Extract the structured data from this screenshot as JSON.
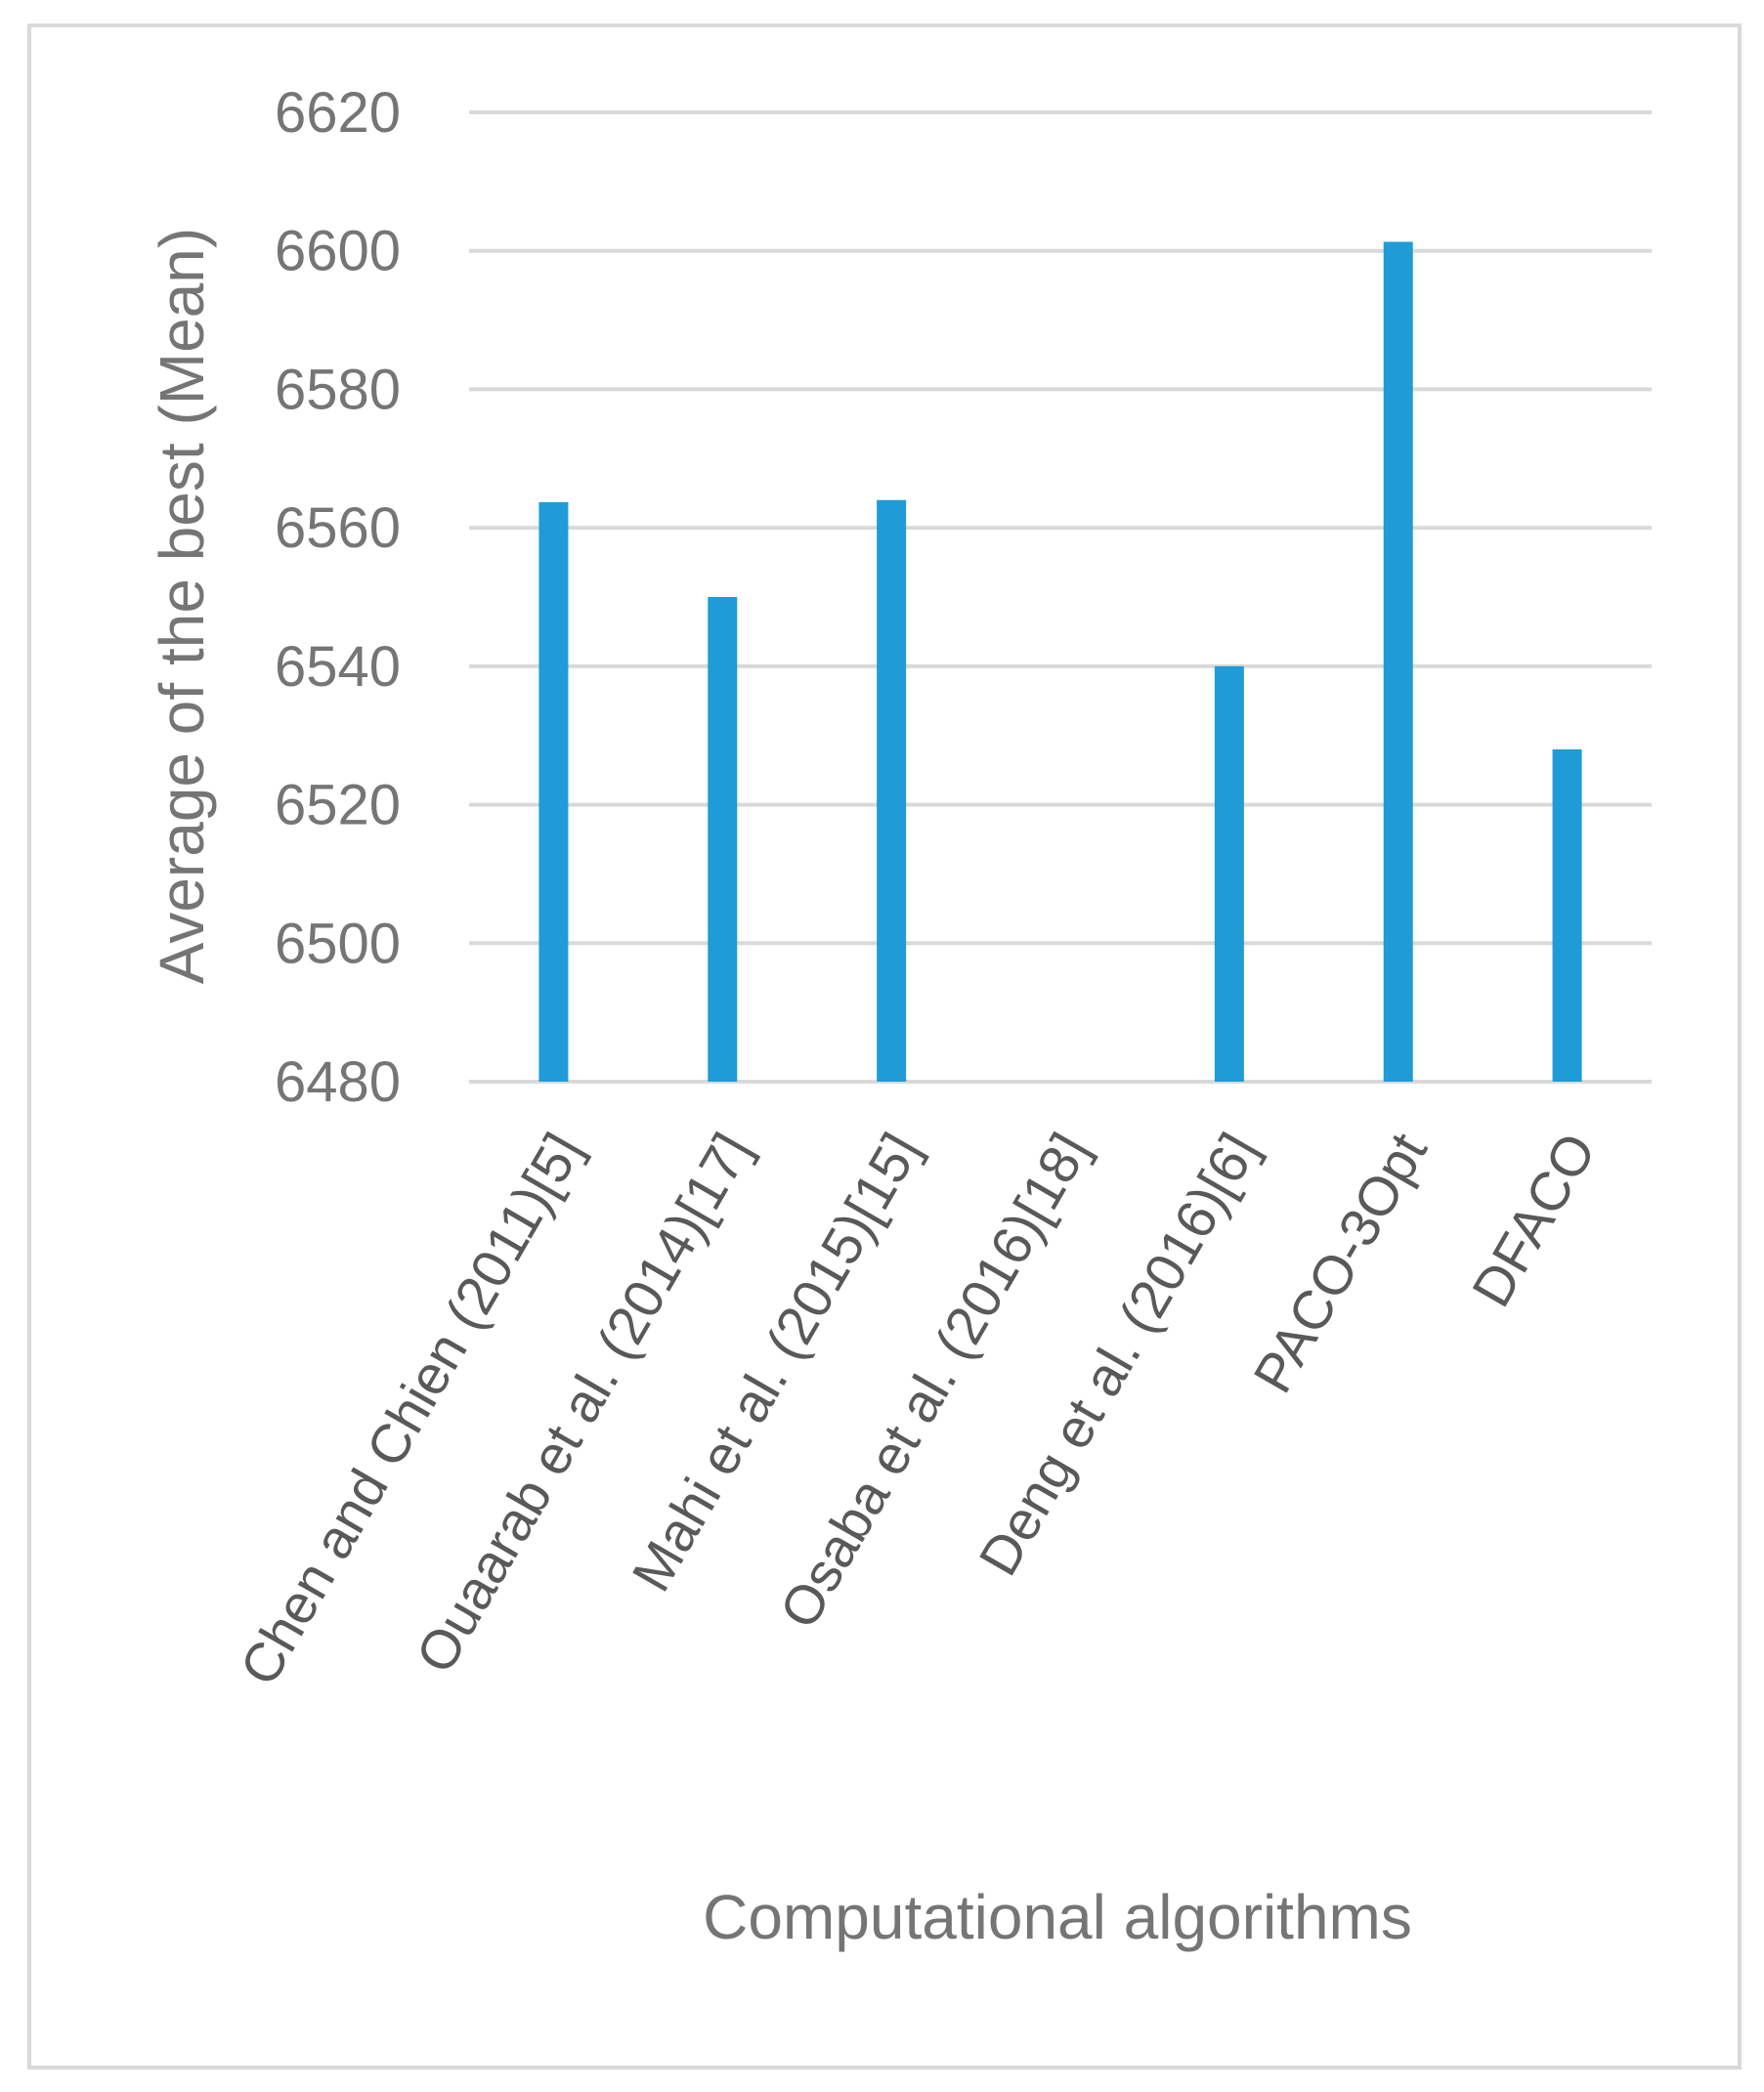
{
  "chart_data": {
    "type": "bar",
    "title": "",
    "xlabel": "Computational algorithms",
    "ylabel": "Average of the best  (Mean)",
    "ylim": [
      6480,
      6620
    ],
    "yticks": [
      6480,
      6500,
      6520,
      6540,
      6560,
      6580,
      6600,
      6620
    ],
    "grid": true,
    "legend": "none",
    "bar_color": "#1f9bd7",
    "categories": [
      "Chen and Chien (2011)[5]",
      "Ouaarab et al. (2014)[17]",
      "Mahi et al. (2015)[15]",
      "Osaba et al. (2016)[18]",
      "Deng et al. (2016)[6]",
      "PACO-3Opt",
      "DFACO"
    ],
    "values": [
      6563.7,
      6550,
      6564,
      6480,
      6540,
      6601.3,
      6528
    ]
  }
}
